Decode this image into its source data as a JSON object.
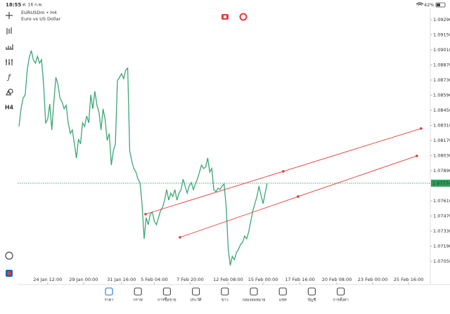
{
  "status_bar": {
    "time": "18:55",
    "date": "ศ. 16 ก.พ.",
    "battery": "42%"
  },
  "left_toolbar": {
    "timeframe": "H4"
  },
  "chart_data": {
    "type": "line",
    "title": "EURUSDm • H4",
    "subtitle": "Euro vs US Dollar",
    "color": "#3aa776",
    "values": [
      1.083,
      1.08463,
      1.08561,
      1.08593,
      1.08821,
      1.08938,
      1.09004,
      1.08919,
      1.08886,
      1.08951,
      1.08886,
      1.08919,
      1.08691,
      1.08333,
      1.08366,
      1.08509,
      1.08268,
      1.08528,
      1.08756,
      1.08691,
      1.08561,
      1.08528,
      1.08463,
      1.08496,
      1.08333,
      1.08235,
      1.08268,
      1.08138,
      1.08008,
      1.08183,
      1.08138,
      1.08333,
      1.083,
      1.08398,
      1.08333,
      1.08593,
      1.08463,
      1.08626,
      1.08496,
      1.08431,
      1.08268,
      1.08463,
      1.08366,
      1.0817,
      1.08235,
      1.07942,
      1.08073,
      1.08138,
      1.08724,
      1.08756,
      1.08789,
      1.08743,
      1.08821,
      1.08841,
      1.08073,
      1.07975,
      1.0791,
      1.07877,
      1.07812,
      1.0778,
      1.07584,
      1.07259,
      1.07454,
      1.07389,
      1.07487,
      1.07506,
      1.07422,
      1.07389,
      1.07454,
      1.07519,
      1.07552,
      1.07617,
      1.07715,
      1.07617,
      1.07682,
      1.0765,
      1.07715,
      1.07617,
      1.07682,
      1.07715,
      1.07812,
      1.07747,
      1.07682,
      1.07747,
      1.0778,
      1.07715,
      1.07767,
      1.07812,
      1.07877,
      1.07942,
      1.0791,
      1.07923,
      1.08008,
      1.07877,
      1.0791,
      1.07715,
      1.07695,
      1.07728,
      1.07715,
      1.07747,
      1.07767,
      1.07552,
      1.07161,
      1.07012,
      1.07096,
      1.07064,
      1.07129,
      1.07161,
      1.07207,
      1.07226,
      1.07285,
      1.07259,
      1.07324,
      1.07422,
      1.07519,
      1.07584,
      1.0765,
      1.07747,
      1.07663,
      1.07584,
      1.07682,
      1.07774
    ],
    "xlim": [
      0,
      197.5
    ],
    "ylim": [
      1.06835,
      1.09407
    ],
    "xticks": [
      {
        "value": 14,
        "label": "24 Jan 12:00"
      },
      {
        "value": 31.5,
        "label": "29 Jan 00:00"
      },
      {
        "value": 50,
        "label": "31 Jan 16:00"
      },
      {
        "value": 66,
        "label": "5 Feb 04:00"
      },
      {
        "value": 83.5,
        "label": "7 Feb 20:00"
      },
      {
        "value": 102,
        "label": "12 Feb 08:00"
      },
      {
        "value": 119,
        "label": "15 Feb 00:00"
      },
      {
        "value": 137,
        "label": "17 Feb 16:00"
      },
      {
        "value": 155,
        "label": "20 Feb 08:00"
      },
      {
        "value": 172.5,
        "label": "23 Feb 00:00"
      },
      {
        "value": 190,
        "label": "25 Feb 16:00"
      }
    ],
    "yticks": [
      {
        "value": 1.0929,
        "label": "1.09290"
      },
      {
        "value": 1.0915,
        "label": "1.09150"
      },
      {
        "value": 1.0901,
        "label": "1.09010"
      },
      {
        "value": 1.0887,
        "label": "1.08870"
      },
      {
        "value": 1.0873,
        "label": "1.08730"
      },
      {
        "value": 1.0859,
        "label": "1.08590"
      },
      {
        "value": 1.0845,
        "label": "1.08450"
      },
      {
        "value": 1.0831,
        "label": "1.08310"
      },
      {
        "value": 1.0817,
        "label": "1.08170"
      },
      {
        "value": 1.0803,
        "label": "1.08030"
      },
      {
        "value": 1.0789,
        "label": "1.07890"
      },
      {
        "value": 1.0761,
        "label": "1.07610"
      },
      {
        "value": 1.0747,
        "label": "1.07470"
      },
      {
        "value": 1.0733,
        "label": "1.07330"
      },
      {
        "value": 1.0719,
        "label": "1.07190"
      },
      {
        "value": 1.0705,
        "label": "1.07050"
      }
    ],
    "current_price": {
      "value": 1.07774,
      "color": "#2e9e5b"
    },
    "trend_lines": [
      {
        "color": "#e53935",
        "x": [
          61.7,
          128.9,
          196.1
        ],
        "values": [
          1.07487,
          1.07884,
          1.08281
        ]
      },
      {
        "color": "#e53935",
        "x": [
          78.5,
          136.1,
          194
        ],
        "values": [
          1.07272,
          1.0765,
          1.08027
        ]
      }
    ]
  },
  "tab_bar": {
    "active_color": "#1976d2",
    "tabs": [
      {
        "label": "ราคา",
        "active": true
      },
      {
        "label": "กราฟ",
        "active": false
      },
      {
        "label": "การซื้อขาย",
        "active": false
      },
      {
        "label": "ประวัติ",
        "active": false
      },
      {
        "label": "ข่าว",
        "active": false
      },
      {
        "label": "กล่องจดหมาย",
        "active": false
      },
      {
        "label": "แชท",
        "active": false
      },
      {
        "label": "บัญชี",
        "active": false
      },
      {
        "label": "การตั้งค่า",
        "active": false
      }
    ]
  }
}
